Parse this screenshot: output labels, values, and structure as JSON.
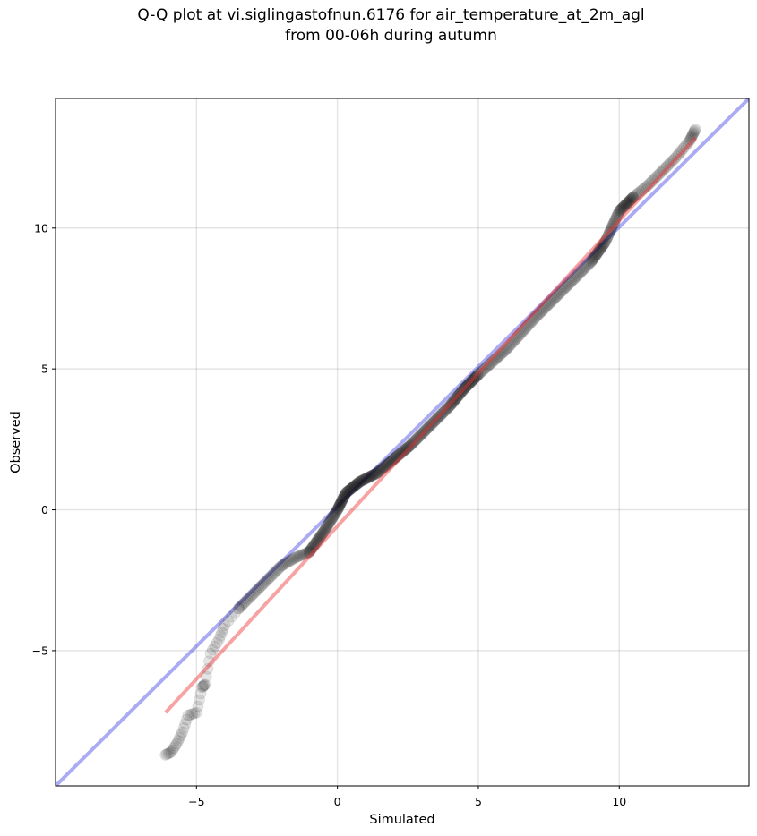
{
  "chart_data": {
    "type": "scatter",
    "title_line1": "Q-Q plot at vi.siglingastofnun.6176 for air_temperature_at_2m_agl",
    "title_line2": "from 00-06h during autumn",
    "xlabel": "Simulated",
    "ylabel": "Observed",
    "xlim": [
      -10,
      14.6
    ],
    "ylim": [
      -9.8,
      14.6
    ],
    "xticks": [
      -5,
      0,
      5,
      10
    ],
    "yticks": [
      -5,
      0,
      5,
      10
    ],
    "xtick_labels": [
      "−5",
      "0",
      "5",
      "10"
    ],
    "ytick_labels": [
      "−5",
      "0",
      "5",
      "10"
    ],
    "grid": true,
    "points_color": "#000000",
    "identity_line": {
      "x": [
        -10,
        14.6
      ],
      "y": [
        -9.8,
        14.6
      ],
      "color": "#0000dd"
    },
    "fit_line": {
      "x": [
        -6.1,
        12.7
      ],
      "y": [
        -7.2,
        13.2
      ],
      "color": "#ee3333"
    },
    "points_anchor": {
      "x": [
        -6.1,
        -5.9,
        -5.7,
        -5.5,
        -5.3,
        -5.0,
        -4.8,
        -4.7,
        -4.5,
        -4.2,
        -4.0,
        -3.5,
        -3.0,
        -2.5,
        -2.0,
        -1.5,
        -1.0,
        -0.5,
        0.0,
        0.3,
        0.8,
        1.4,
        2.0,
        2.6,
        3.3,
        4.0,
        4.5,
        5.0,
        6.0,
        7.0,
        8.0,
        9.0,
        9.5,
        10.0,
        10.5,
        11.0,
        11.5,
        12.0,
        12.5,
        12.7
      ],
      "y": [
        -8.7,
        -8.6,
        -8.3,
        -7.9,
        -7.3,
        -7.2,
        -6.3,
        -6.2,
        -5.1,
        -4.6,
        -4.1,
        -3.5,
        -3.0,
        -2.5,
        -2.0,
        -1.7,
        -1.5,
        -0.8,
        0.0,
        0.6,
        1.0,
        1.3,
        1.8,
        2.3,
        3.0,
        3.7,
        4.3,
        4.8,
        5.7,
        6.8,
        7.8,
        8.8,
        9.5,
        10.6,
        11.1,
        11.5,
        12.0,
        12.5,
        13.1,
        13.5
      ]
    }
  }
}
